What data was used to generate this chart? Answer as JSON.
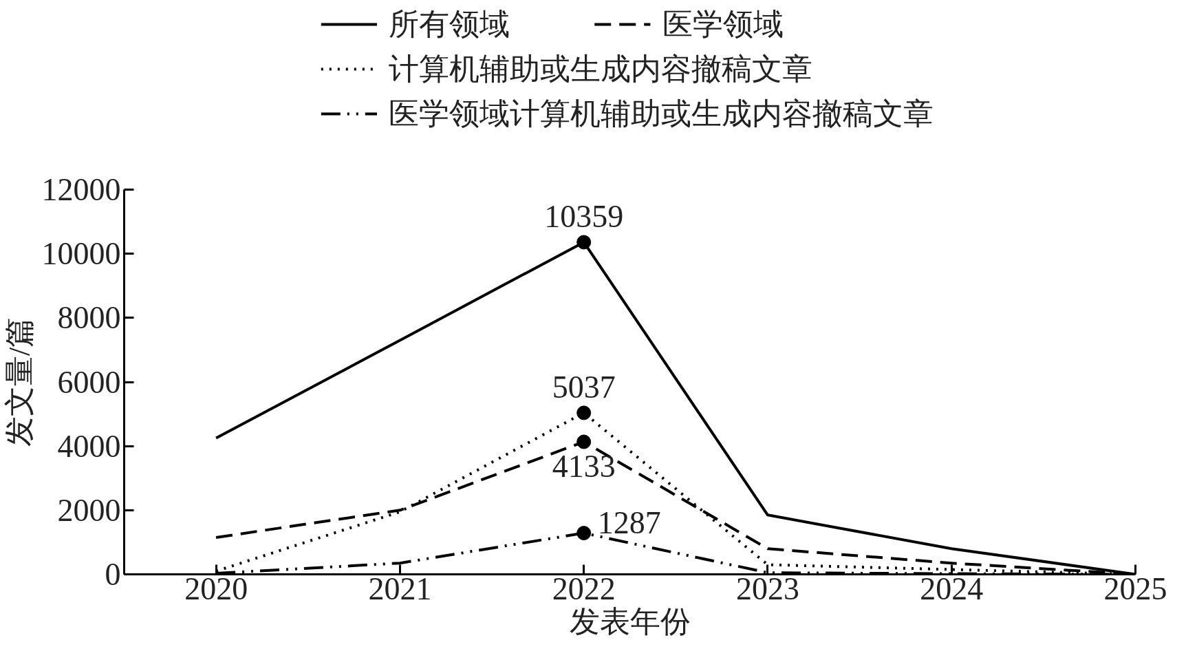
{
  "chart_data": {
    "type": "line",
    "xlabel": "发表年份",
    "ylabel": "发文量/篇",
    "x": [
      2020,
      2021,
      2022,
      2023,
      2024,
      2025
    ],
    "xlim": [
      2019.5,
      2025
    ],
    "xticks": [
      2020,
      2021,
      2022,
      2023,
      2024,
      2025
    ],
    "ylim": [
      0,
      12000
    ],
    "yticks": [
      0,
      2000,
      4000,
      6000,
      8000,
      10000,
      12000
    ],
    "grid": false,
    "legend": "top",
    "series": [
      {
        "name": "所有领域",
        "color": "#000000",
        "line_style": "solid",
        "values": [
          4250,
          7300,
          10359,
          1850,
          800,
          0
        ],
        "value_labels": [
          null,
          null,
          "10359",
          null,
          null,
          null
        ]
      },
      {
        "name": "医学领域",
        "color": "#000000",
        "line_style": "dashed",
        "values": [
          1150,
          2000,
          4133,
          800,
          350,
          0
        ],
        "value_labels": [
          null,
          null,
          "4133",
          null,
          null,
          null
        ]
      },
      {
        "name": "计算机辅助或生成内容撤稿文章",
        "color": "#000000",
        "line_style": "dotted",
        "values": [
          100,
          1950,
          5037,
          300,
          150,
          0
        ],
        "value_labels": [
          null,
          null,
          "5037",
          null,
          null,
          null
        ]
      },
      {
        "name": "医学领域计算机辅助或生成内容撤稿文章",
        "color": "#000000",
        "line_style": "dashdot",
        "values": [
          30,
          350,
          1287,
          50,
          20,
          0
        ],
        "value_labels": [
          null,
          null,
          "1287",
          null,
          null,
          null
        ]
      }
    ]
  }
}
